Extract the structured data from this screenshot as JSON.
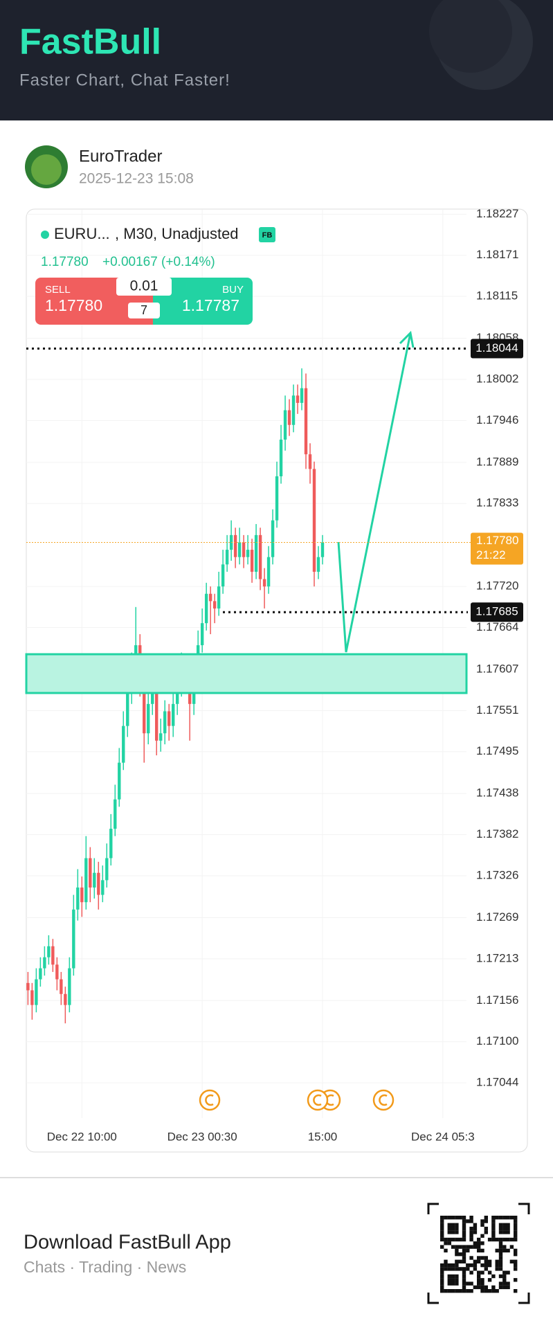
{
  "header": {
    "logo": "FastBull",
    "tagline": "Faster Chart, Chat Faster!"
  },
  "post": {
    "author": "EuroTrader",
    "time": "2025-12-23 15:08"
  },
  "widget": {
    "symbol": "EURU...",
    "params": ", M30, Unadjusted",
    "badge": "FB",
    "price": "1.17780",
    "change": "+0.00167 (+0.14%)",
    "sell_label": "SELL",
    "sell_price": "1.17780",
    "lot": "0.01",
    "spread": "7",
    "buy_label": "BUY",
    "buy_price": "1.17787"
  },
  "chart_data": {
    "type": "candlestick",
    "up_color": "#22d3a3",
    "down_color": "#ef5b5b",
    "open": [
      1.1718,
      1.1717,
      1.1715,
      1.17185,
      1.172,
      1.17215,
      1.1723,
      1.17205,
      1.17185,
      1.17165,
      1.1715,
      1.172,
      1.1728,
      1.1731,
      1.1729,
      1.1735,
      1.1731,
      1.1733,
      1.173,
      1.1732,
      1.1735,
      1.1739,
      1.1743,
      1.1748,
      1.1753,
      1.1758,
      1.1761,
      1.1764,
      1.1759,
      1.1752,
      1.1756,
      1.1758,
      1.1751,
      1.1752,
      1.1755,
      1.1753,
      1.1756,
      1.1758,
      1.1761,
      1.176,
      1.1756,
      1.176,
      1.1764,
      1.1767,
      1.1771,
      1.177,
      1.1769,
      1.1772,
      1.1775,
      1.1777,
      1.1779,
      1.1776,
      1.1778,
      1.1776,
      1.1777,
      1.1774,
      1.1779,
      1.1773,
      1.1772,
      1.1776,
      1.1781,
      1.1787,
      1.1792,
      1.1796,
      1.1794,
      1.1798,
      1.1797,
      1.1799,
      1.179,
      1.1788,
      1.1774,
      1.1776
    ],
    "high": [
      1.17195,
      1.1718,
      1.172,
      1.17215,
      1.1723,
      1.17245,
      1.1724,
      1.17215,
      1.17195,
      1.17175,
      1.17215,
      1.173,
      1.17335,
      1.17325,
      1.1738,
      1.17365,
      1.1735,
      1.17345,
      1.1734,
      1.1737,
      1.1741,
      1.1745,
      1.175,
      1.1755,
      1.176,
      1.1763,
      1.17692,
      1.17655,
      1.17605,
      1.17575,
      1.176,
      1.1759,
      1.1754,
      1.17565,
      1.1756,
      1.17575,
      1.17595,
      1.1763,
      1.1762,
      1.1761,
      1.17615,
      1.1766,
      1.1769,
      1.17725,
      1.1772,
      1.1771,
      1.1774,
      1.1777,
      1.1779,
      1.1781,
      1.178,
      1.178,
      1.1779,
      1.1779,
      1.17785,
      1.17805,
      1.178,
      1.17745,
      1.17775,
      1.17825,
      1.1789,
      1.1794,
      1.1798,
      1.17975,
      1.17995,
      1.17995,
      1.18017,
      1.1801,
      1.17915,
      1.1789,
      1.17775,
      1.1779
    ],
    "low": [
      1.1715,
      1.1713,
      1.1714,
      1.17175,
      1.1719,
      1.17205,
      1.17195,
      1.1717,
      1.1715,
      1.17125,
      1.1714,
      1.1719,
      1.17265,
      1.1727,
      1.1728,
      1.1729,
      1.17295,
      1.1728,
      1.1729,
      1.1731,
      1.1734,
      1.1738,
      1.1742,
      1.1747,
      1.17515,
      1.1756,
      1.17595,
      1.1757,
      1.1748,
      1.17505,
      1.17545,
      1.1749,
      1.17495,
      1.17505,
      1.1751,
      1.17515,
      1.17545,
      1.1757,
      1.17585,
      1.1751,
      1.17545,
      1.1759,
      1.1763,
      1.1766,
      1.17655,
      1.1767,
      1.1768,
      1.1771,
      1.1774,
      1.17755,
      1.17745,
      1.1775,
      1.17745,
      1.1775,
      1.17725,
      1.1773,
      1.17715,
      1.1769,
      1.1771,
      1.1775,
      1.178,
      1.1786,
      1.17905,
      1.17925,
      1.1793,
      1.17955,
      1.1796,
      1.1788,
      1.1786,
      1.1772,
      1.1773,
      1.1775
    ],
    "close": [
      1.1717,
      1.1715,
      1.17185,
      1.172,
      1.17215,
      1.1723,
      1.17205,
      1.17185,
      1.17165,
      1.1715,
      1.172,
      1.1728,
      1.1731,
      1.1729,
      1.1735,
      1.1731,
      1.1733,
      1.173,
      1.1732,
      1.1735,
      1.1739,
      1.1743,
      1.1748,
      1.1753,
      1.1758,
      1.1761,
      1.1764,
      1.1759,
      1.1752,
      1.1756,
      1.1758,
      1.1751,
      1.1752,
      1.1755,
      1.1753,
      1.1756,
      1.1758,
      1.1761,
      1.176,
      1.1756,
      1.176,
      1.1764,
      1.1767,
      1.1771,
      1.177,
      1.1769,
      1.1772,
      1.1775,
      1.1777,
      1.1779,
      1.1776,
      1.1778,
      1.1776,
      1.1777,
      1.1774,
      1.1779,
      1.1773,
      1.1772,
      1.1776,
      1.1781,
      1.1787,
      1.1792,
      1.1796,
      1.1794,
      1.1798,
      1.1797,
      1.1799,
      1.179,
      1.1788,
      1.1774,
      1.1776,
      1.1778
    ],
    "xlim": [
      -0.4,
      105.7
    ],
    "xticks": [
      {
        "value": 13,
        "label": "Dec 22 10:00"
      },
      {
        "value": 42,
        "label": "Dec 23 00:30"
      },
      {
        "value": 71,
        "label": "15:00"
      },
      {
        "value": 100,
        "label": "Dec 24 05:3"
      }
    ],
    "ylim": [
      1.16996,
      1.18233
    ],
    "yticks": [
      1.18227,
      1.18171,
      1.18115,
      1.18058,
      1.18002,
      1.17946,
      1.17889,
      1.17833,
      {
        "value": 1.1772,
        "label": "1.17720"
      },
      1.17664,
      1.17607,
      1.17551,
      1.17495,
      1.17438,
      1.17382,
      1.17326,
      1.17269,
      1.17213,
      1.17156,
      {
        "value": 1.171,
        "label": "1.17100"
      },
      1.17044
    ],
    "grid": true,
    "price_lines": [
      {
        "value": 1.18044
      },
      {
        "value": 1.17685
      }
    ],
    "current": {
      "value": 1.1778,
      "label": "1.17780",
      "time": "21:22",
      "color": "#f5a524"
    }
  },
  "footer": {
    "title": "Download FastBull App",
    "subtitle": "Chats · Trading · News"
  }
}
